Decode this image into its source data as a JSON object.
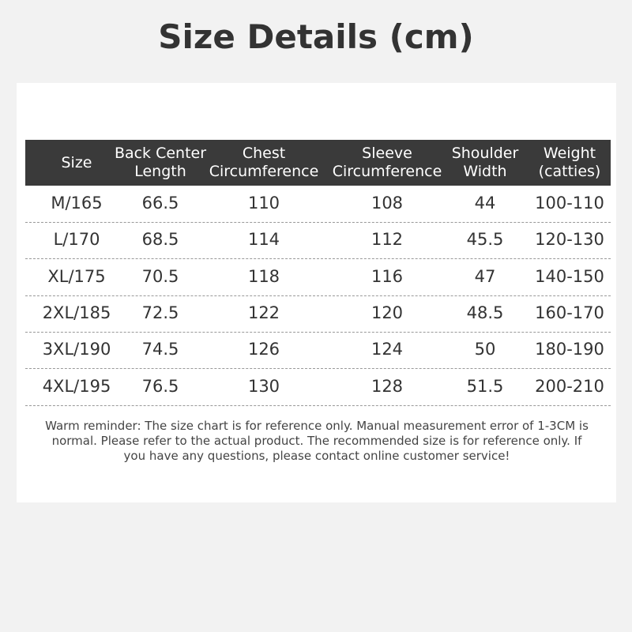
{
  "title": "Size Details (cm)",
  "headers": [
    [
      "Size",
      ""
    ],
    [
      "Back Center",
      "Length"
    ],
    [
      "Chest",
      "Circumference"
    ],
    [
      "Sleeve",
      "Circumference"
    ],
    [
      "Shoulder",
      "Width"
    ],
    [
      "Weight",
      "(catties)"
    ]
  ],
  "rows": [
    [
      "M/165",
      "66.5",
      "110",
      "108",
      "44",
      "100-110"
    ],
    [
      "L/170",
      "68.5",
      "114",
      "112",
      "45.5",
      "120-130"
    ],
    [
      "XL/175",
      "70.5",
      "118",
      "116",
      "47",
      "140-150"
    ],
    [
      "2XL/185",
      "72.5",
      "122",
      "120",
      "48.5",
      "160-170"
    ],
    [
      "3XL/190",
      "74.5",
      "126",
      "124",
      "50",
      "180-190"
    ],
    [
      "4XL/195",
      "76.5",
      "130",
      "128",
      "51.5",
      "200-210"
    ]
  ],
  "note": "Warm reminder: The size chart is for reference only. Manual measurement error of 1-3CM is normal. Please refer to the actual product. The recommended size is for reference only. If you have any questions, please contact online customer service!"
}
